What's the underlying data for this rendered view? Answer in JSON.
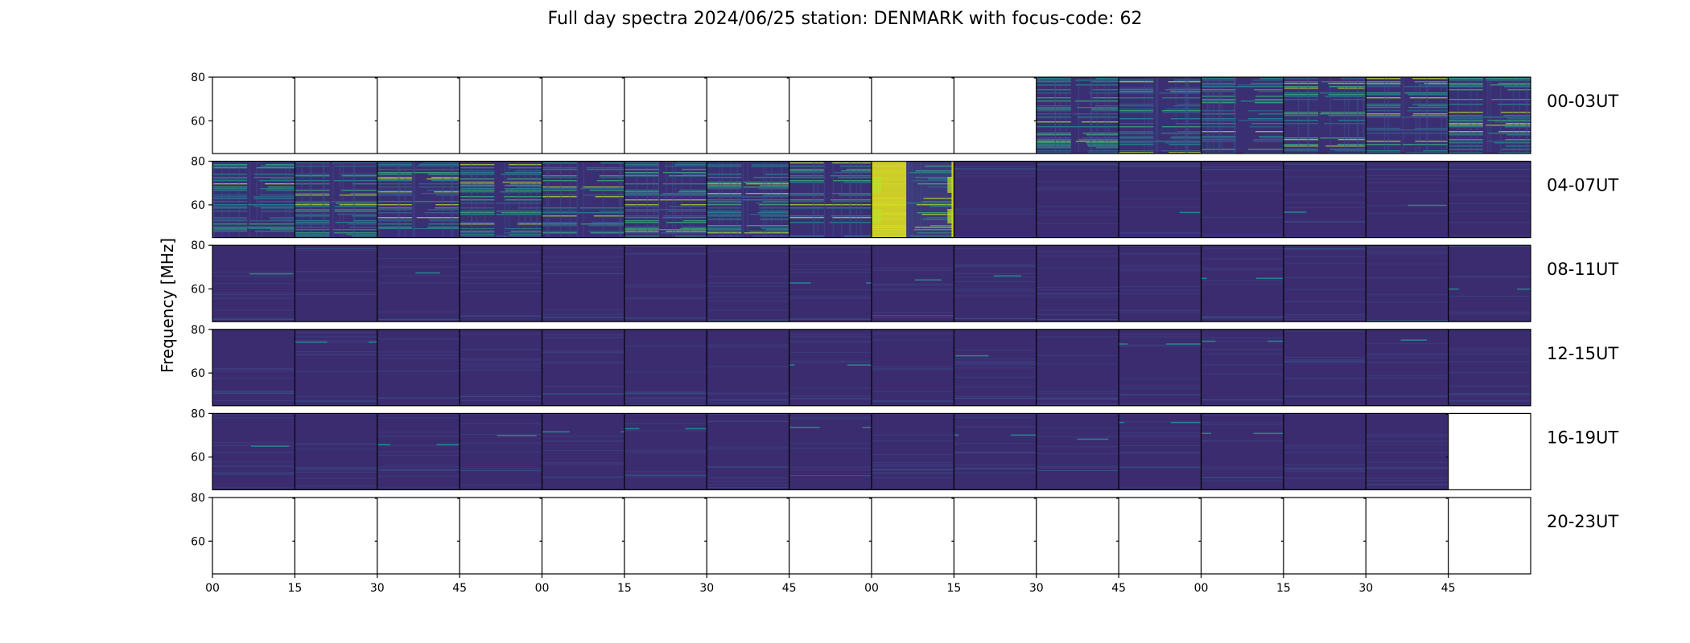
{
  "chart_data": {
    "type": "heatmap",
    "title": "Full day spectra 2024/06/25 station: DENMARK with focus-code: 62",
    "ylabel": "Frequency [MHz]",
    "xlabel": "",
    "y_range": [
      45,
      80
    ],
    "y_ticks": [
      "60",
      "80"
    ],
    "x_tick_labels": [
      "00",
      "15",
      "30",
      "45",
      "00",
      "15",
      "30",
      "45",
      "00",
      "15",
      "30",
      "45",
      "00",
      "15",
      "30",
      "45"
    ],
    "colormap": "viridis",
    "rows": [
      {
        "label": "00-03UT",
        "panels": [
          "empty",
          "empty",
          "empty",
          "empty",
          "empty",
          "empty",
          "empty",
          "empty",
          "empty",
          "empty",
          "high",
          "high",
          "high",
          "high",
          "high",
          "high"
        ]
      },
      {
        "label": "04-07UT",
        "panels": [
          "high",
          "high",
          "high",
          "high",
          "high",
          "high",
          "high",
          "high",
          "burst",
          "low",
          "low",
          "low",
          "low",
          "low",
          "low",
          "low"
        ]
      },
      {
        "label": "08-11UT",
        "panels": [
          "low",
          "low",
          "low",
          "low",
          "low",
          "low",
          "low",
          "low",
          "low",
          "low",
          "low",
          "low",
          "low",
          "low",
          "low",
          "low"
        ]
      },
      {
        "label": "12-15UT",
        "panels": [
          "low",
          "low",
          "low",
          "low",
          "low",
          "low",
          "low",
          "low",
          "low",
          "low",
          "low",
          "low",
          "low",
          "low",
          "low",
          "low"
        ]
      },
      {
        "label": "16-19UT",
        "panels": [
          "low",
          "low",
          "low",
          "low",
          "low",
          "low",
          "low",
          "low",
          "low",
          "low",
          "low",
          "low",
          "low",
          "low",
          "low",
          "empty"
        ]
      },
      {
        "label": "20-23UT",
        "panels": [
          "empty",
          "empty",
          "empty",
          "empty",
          "empty",
          "empty",
          "empty",
          "empty",
          "empty",
          "empty",
          "empty",
          "empty",
          "empty",
          "empty",
          "empty",
          "empty"
        ]
      }
    ]
  }
}
